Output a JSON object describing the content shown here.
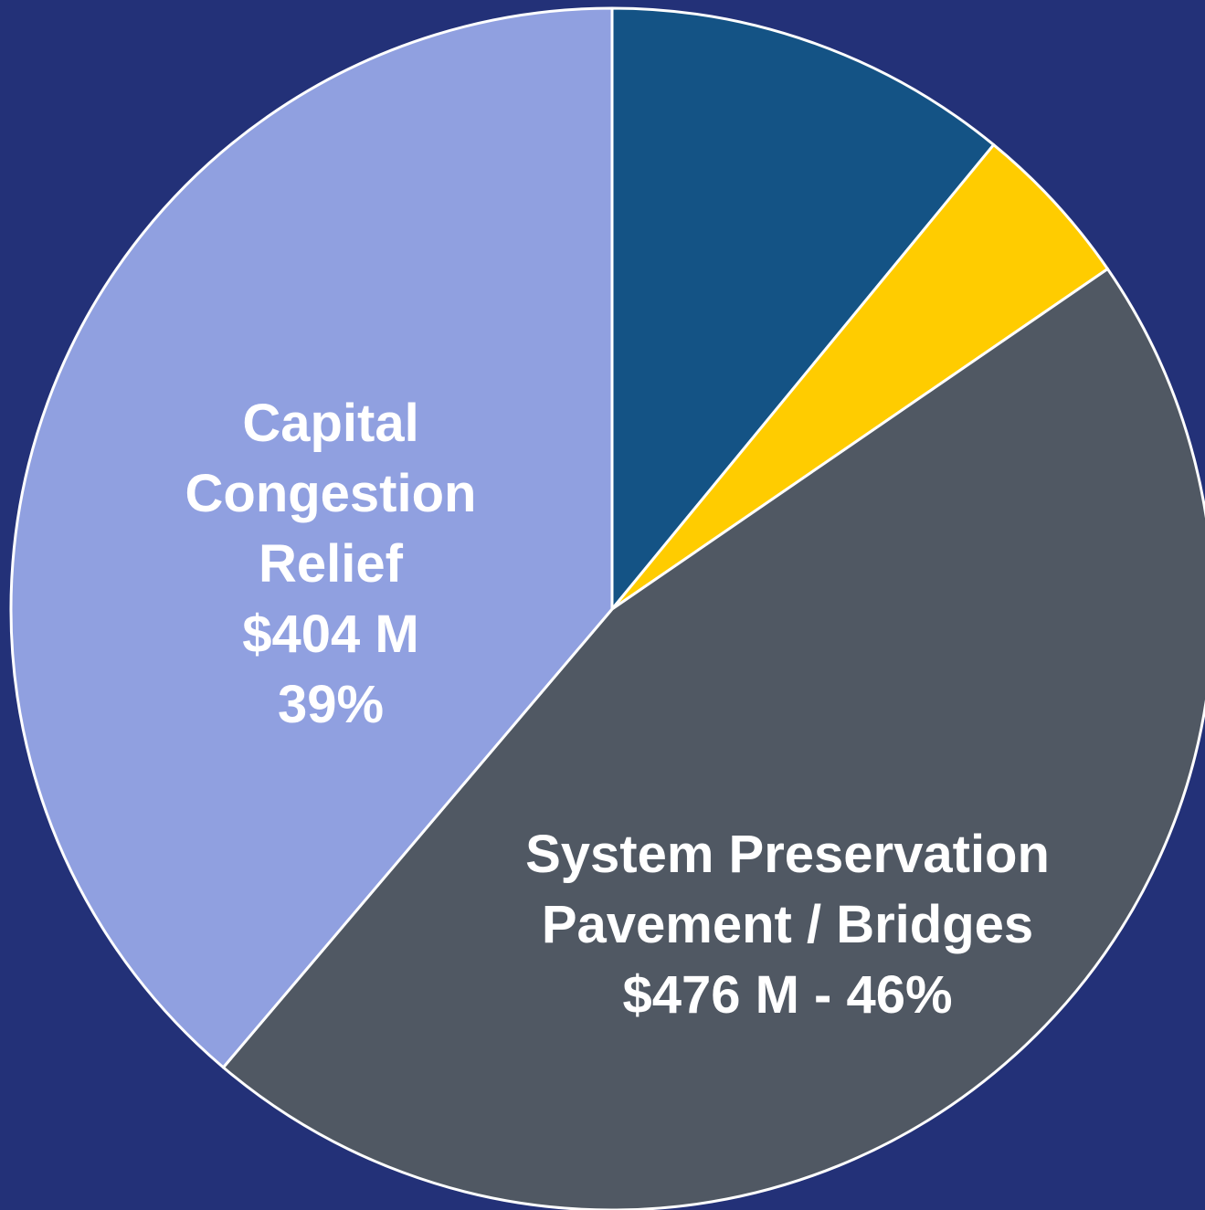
{
  "chart_data": {
    "type": "pie",
    "start": "top",
    "direction": "clockwise",
    "background_color": "#233178",
    "slices": [
      {
        "name": "",
        "value": 11,
        "color": "#145385",
        "label_lines": []
      },
      {
        "name": "",
        "value": 4.5,
        "color": "#FFCC00",
        "label_lines": []
      },
      {
        "name": "System Preservation Pavement / Bridges",
        "value": 46,
        "amount": "$476 M",
        "percent": "46%",
        "color": "#505863",
        "label_lines": [
          "System Preservation",
          "Pavement / Bridges",
          "$476 M - 46%"
        ]
      },
      {
        "name": "Capital Congestion Relief",
        "value": 39,
        "amount": "$404 M",
        "percent": "39%",
        "color": "#90A0E0",
        "label_lines": [
          "Capital",
          "Congestion",
          "Relief",
          "$404 M",
          "39%"
        ]
      }
    ]
  }
}
